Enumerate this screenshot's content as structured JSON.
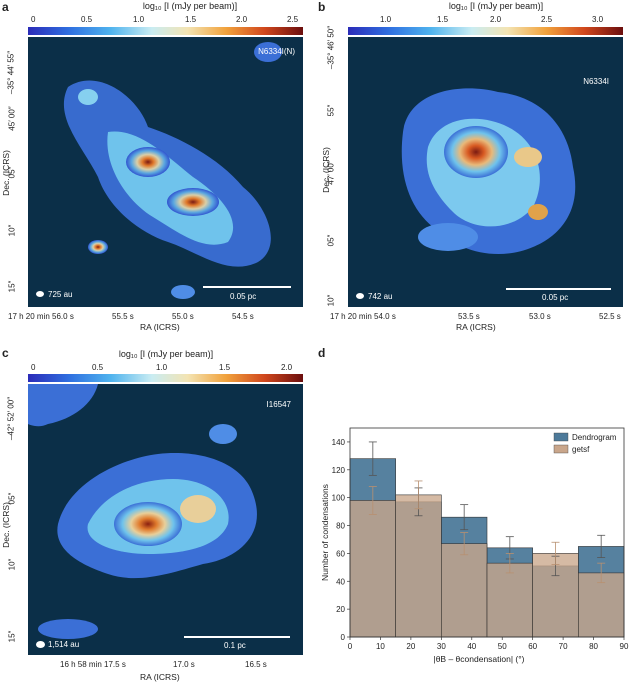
{
  "panels": {
    "a": {
      "label": "a",
      "source": "N6334I(N)",
      "colorbar": {
        "title": "log₁₀ [I (mJy per beam)]",
        "ticks": [
          "0",
          "0.5",
          "1.0",
          "1.5",
          "2.0",
          "2.5"
        ]
      },
      "dec_ticks": [
        "–35° 44′ 55″",
        "45′ 00″",
        "05″",
        "10″",
        "15″"
      ],
      "ra_ticks": [
        "17 h 20 min 56.0 s",
        "55.5 s",
        "55.0 s",
        "54.5 s"
      ],
      "xlabel": "RA (ICRS)",
      "ylabel": "Dec. (ICRS)",
      "beam": "725 au",
      "scale": "0.05 pc"
    },
    "b": {
      "label": "b",
      "source": "N6334I",
      "colorbar": {
        "title": "log₁₀ [I (mJy per beam)]",
        "ticks": [
          "1.0",
          "1.5",
          "2.0",
          "2.5",
          "3.0"
        ]
      },
      "dec_ticks": [
        "–35° 46′ 50″",
        "55″",
        "47′ 00″",
        "05″",
        "10″"
      ],
      "ra_ticks": [
        "17 h 20 min 54.0 s",
        "53.5 s",
        "53.0 s",
        "52.5 s"
      ],
      "xlabel": "RA (ICRS)",
      "ylabel": "Dec. (ICRS)",
      "beam": "742 au",
      "scale": "0.05 pc"
    },
    "c": {
      "label": "c",
      "source": "I16547",
      "colorbar": {
        "title": "log₁₀ [I (mJy per beam)]",
        "ticks": [
          "0",
          "0.5",
          "1.0",
          "1.5",
          "2.0"
        ]
      },
      "dec_ticks": [
        "–42° 52′ 00″",
        "05″",
        "10″",
        "15″"
      ],
      "ra_ticks": [
        "16 h 58 min 17.5 s",
        "17.0 s",
        "16.5 s"
      ],
      "xlabel": "RA (ICRS)",
      "ylabel": "Dec. (ICRS)",
      "beam": "1,514 au",
      "scale": "0.1 pc"
    },
    "d": {
      "label": "d"
    }
  },
  "colors": {
    "map_bg": "#0b2f48",
    "dendrogram": "#4d7a9a",
    "getsf": "#c9a68b"
  },
  "chart_data": {
    "type": "bar",
    "xlabel": "|θB – θcondensation| (°)",
    "ylabel": "Number of condensations",
    "xlim": [
      0,
      90
    ],
    "ylim": [
      0,
      150
    ],
    "xticks": [
      0,
      10,
      20,
      30,
      40,
      50,
      60,
      70,
      80,
      90
    ],
    "yticks": [
      0,
      20,
      40,
      60,
      80,
      100,
      120,
      140
    ],
    "bin_edges": [
      0,
      15,
      30,
      45,
      60,
      75,
      90
    ],
    "series": [
      {
        "name": "Dendrogram",
        "values": [
          128,
          97,
          86,
          64,
          51,
          65
        ],
        "errors": [
          12,
          10,
          9,
          8,
          7,
          8
        ]
      },
      {
        "name": "getsf",
        "values": [
          98,
          102,
          67,
          53,
          60,
          46
        ],
        "errors": [
          10,
          10,
          8,
          7,
          8,
          7
        ]
      }
    ],
    "legend_position": "top-right"
  }
}
